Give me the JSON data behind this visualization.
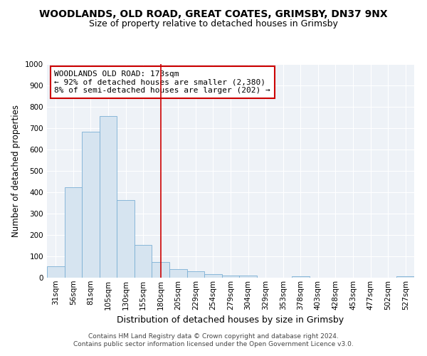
{
  "title": "WOODLANDS, OLD ROAD, GREAT COATES, GRIMSBY, DN37 9NX",
  "subtitle": "Size of property relative to detached houses in Grimsby",
  "xlabel": "Distribution of detached houses by size in Grimsby",
  "ylabel": "Number of detached properties",
  "categories": [
    "31sqm",
    "56sqm",
    "81sqm",
    "105sqm",
    "130sqm",
    "155sqm",
    "180sqm",
    "205sqm",
    "229sqm",
    "254sqm",
    "279sqm",
    "304sqm",
    "329sqm",
    "353sqm",
    "378sqm",
    "403sqm",
    "428sqm",
    "453sqm",
    "477sqm",
    "502sqm",
    "527sqm"
  ],
  "values": [
    52,
    422,
    683,
    757,
    365,
    155,
    75,
    40,
    30,
    17,
    10,
    10,
    0,
    0,
    8,
    0,
    0,
    0,
    0,
    0,
    8
  ],
  "bar_color": "#d6e4f0",
  "bar_edge_color": "#7bafd4",
  "highlight_index": 6,
  "highlight_line_color": "#cc0000",
  "annotation_text": "WOODLANDS OLD ROAD: 173sqm\n← 92% of detached houses are smaller (2,380)\n8% of semi-detached houses are larger (202) →",
  "annotation_box_color": "white",
  "annotation_box_edge_color": "#cc0000",
  "ylim": [
    0,
    1000
  ],
  "yticks": [
    0,
    100,
    200,
    300,
    400,
    500,
    600,
    700,
    800,
    900,
    1000
  ],
  "footnote": "Contains HM Land Registry data © Crown copyright and database right 2024.\nContains public sector information licensed under the Open Government Licence v3.0.",
  "bg_color": "#eef2f7",
  "grid_color": "white",
  "title_fontsize": 10,
  "subtitle_fontsize": 9,
  "xlabel_fontsize": 9,
  "ylabel_fontsize": 8.5,
  "tick_fontsize": 7.5,
  "annotation_fontsize": 8,
  "footnote_fontsize": 6.5
}
